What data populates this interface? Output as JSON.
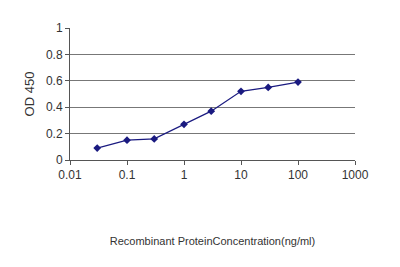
{
  "chart_data": {
    "type": "line",
    "x_label": "Recombinant ProteinConcentration(ng/ml)",
    "y_label": "OD 450",
    "x": [
      0.03,
      0.1,
      0.3,
      1,
      3,
      10,
      30,
      100
    ],
    "values": [
      0.09,
      0.15,
      0.16,
      0.27,
      0.37,
      0.52,
      0.55,
      0.59
    ],
    "color": "#1a1a80",
    "marker": "diamond",
    "log": "x",
    "xlim": [
      0.01,
      1000
    ],
    "xticks": [
      0.01,
      0.1,
      1,
      10,
      100,
      1000
    ],
    "ylim": [
      0,
      1
    ],
    "yticks": [
      0,
      0.2,
      0.4,
      0.6,
      0.8,
      1
    ],
    "grid": true
  }
}
